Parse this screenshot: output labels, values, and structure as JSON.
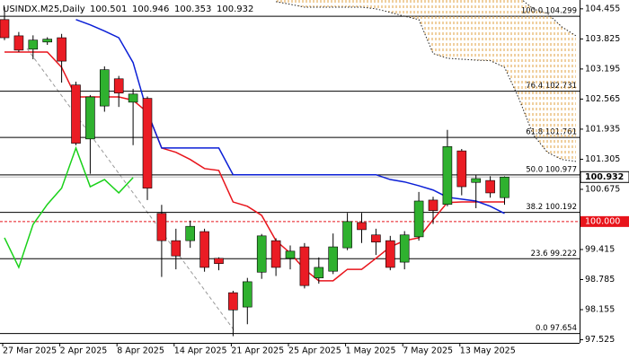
{
  "chart_data": {
    "type": "candlestick",
    "symbol": "USINDX.M25,Daily",
    "header_ohlc": [
      100.501,
      100.946,
      100.353,
      100.932
    ],
    "categories": [
      "27 Mar 2025",
      null,
      null,
      null,
      "2 Apr 2025",
      null,
      null,
      null,
      "8 Apr 2025",
      null,
      null,
      null,
      "14 Apr 2025",
      null,
      null,
      null,
      "21 Apr 2025",
      null,
      null,
      null,
      "25 Apr 2025",
      null,
      null,
      null,
      "1 May 2025",
      null,
      null,
      null,
      "7 May 2025",
      null,
      null,
      null,
      "13 May 2025",
      null,
      null,
      null,
      null,
      null,
      null,
      null,
      null
    ],
    "open": [
      104.23,
      103.89,
      103.61,
      103.76,
      103.85,
      102.86,
      101.73,
      102.42,
      102.99,
      102.5,
      102.58,
      100.17,
      99.6,
      99.6,
      99.79,
      99.23,
      98.51,
      98.21,
      98.94,
      99.6,
      99.23,
      99.47,
      98.82,
      98.96,
      99.45,
      99.98,
      99.72,
      99.6,
      99.15,
      99.68,
      100.45,
      100.36,
      101.48,
      100.82,
      100.86,
      100.501,
      null,
      null,
      null,
      null,
      null
    ],
    "high": [
      104.49,
      103.97,
      103.9,
      103.86,
      103.93,
      102.93,
      102.65,
      103.25,
      103.05,
      102.78,
      102.62,
      100.35,
      99.85,
      100.02,
      99.85,
      99.25,
      98.55,
      98.82,
      99.74,
      99.65,
      99.5,
      99.55,
      99.25,
      99.75,
      100.18,
      100.18,
      99.85,
      99.7,
      99.8,
      100.62,
      100.52,
      101.92,
      101.52,
      100.98,
      100.95,
      100.946,
      null,
      null,
      null,
      null,
      null
    ],
    "low": [
      103.8,
      103.55,
      103.4,
      103.7,
      102.91,
      101.6,
      101.0,
      102.3,
      102.4,
      101.6,
      100.45,
      98.84,
      99.0,
      99.45,
      98.95,
      98.98,
      97.6,
      97.85,
      98.8,
      98.86,
      99.0,
      98.6,
      98.7,
      98.9,
      99.4,
      99.55,
      99.3,
      98.98,
      99.0,
      99.6,
      99.95,
      100.32,
      100.55,
      100.28,
      100.5,
      100.353,
      null,
      null,
      null,
      null,
      null
    ],
    "close": [
      103.85,
      103.59,
      103.8,
      103.82,
      103.36,
      101.64,
      102.61,
      103.18,
      102.69,
      102.67,
      100.7,
      99.6,
      99.28,
      99.9,
      99.04,
      99.12,
      98.15,
      98.74,
      99.7,
      99.04,
      99.38,
      98.66,
      99.04,
      99.47,
      100.0,
      99.83,
      99.57,
      99.04,
      99.72,
      100.43,
      100.23,
      101.57,
      100.73,
      100.9,
      100.6,
      100.932,
      null,
      null,
      null,
      null,
      null
    ],
    "up_color": "#2fb12f",
    "down_color": "#ea1c24",
    "series": [
      {
        "color": "#e8141b",
        "style": "solid",
        "values": [
          103.55,
          103.55,
          103.55,
          103.55,
          103.23,
          102.61,
          102.61,
          102.61,
          102.61,
          102.54,
          102.29,
          101.54,
          101.45,
          101.3,
          101.11,
          101.07,
          100.41,
          100.32,
          100.13,
          99.6,
          99.34,
          99.0,
          98.76,
          98.76,
          99.0,
          99.0,
          99.23,
          99.47,
          99.6,
          99.66,
          100.04,
          100.4,
          100.41,
          100.41,
          100.41,
          100.41,
          null,
          null,
          null,
          null,
          null
        ]
      },
      {
        "color": "#0b1fd6",
        "style": "solid",
        "values": [
          null,
          null,
          null,
          null,
          null,
          104.23,
          104.12,
          103.99,
          103.85,
          103.33,
          102.29,
          101.54,
          101.54,
          101.54,
          101.54,
          101.54,
          100.98,
          100.98,
          100.98,
          100.98,
          100.98,
          100.98,
          100.98,
          100.98,
          100.98,
          100.98,
          100.98,
          100.88,
          100.83,
          100.75,
          100.66,
          100.51,
          100.47,
          100.43,
          100.32,
          100.17,
          null,
          null,
          null,
          null,
          null
        ]
      },
      {
        "color": "#19d119",
        "style": "solid",
        "values": [
          99.66,
          99.04,
          99.94,
          100.36,
          100.7,
          101.54,
          100.73,
          100.88,
          100.6,
          100.92,
          null,
          null,
          null,
          null,
          null,
          null,
          null,
          null,
          null,
          null,
          null,
          null,
          null,
          null,
          null,
          null,
          null,
          null,
          null,
          null,
          null,
          null,
          null,
          null,
          null,
          null,
          null,
          null,
          null,
          null,
          null
        ]
      },
      {
        "color": "#222222",
        "style": "dotted",
        "values": [
          null,
          null,
          null,
          null,
          null,
          null,
          null,
          null,
          null,
          null,
          null,
          null,
          null,
          null,
          null,
          null,
          null,
          null,
          null,
          104.605,
          104.55,
          104.49,
          104.49,
          104.49,
          104.49,
          104.49,
          104.455,
          104.38,
          104.3,
          104.23,
          103.52,
          103.42,
          103.4,
          103.38,
          103.37,
          103.23,
          102.58,
          101.82,
          101.45,
          101.3,
          101.26
        ]
      },
      {
        "color": "#222222",
        "style": "dotted",
        "values": [
          null,
          null,
          null,
          null,
          null,
          null,
          null,
          null,
          null,
          null,
          null,
          null,
          null,
          null,
          null,
          null,
          null,
          null,
          null,
          104.7,
          104.7,
          104.7,
          104.7,
          104.7,
          104.7,
          104.7,
          104.7,
          104.7,
          104.7,
          104.7,
          104.7,
          104.7,
          104.7,
          104.7,
          104.7,
          104.7,
          104.7,
          104.455,
          104.36,
          104.08,
          103.89
        ]
      }
    ],
    "cloud_color": "#e0a040",
    "ylim": [
      97.46,
      104.64
    ],
    "yticks": [
      104.455,
      103.825,
      103.195,
      102.565,
      101.935,
      101.305,
      100.675,
      99.415,
      98.785,
      98.155,
      97.525
    ],
    "fib_levels": [
      {
        "value": 104.299,
        "label": "100.0 104.299"
      },
      {
        "value": 102.731,
        "label": "76.4 102.731"
      },
      {
        "value": 101.761,
        "label": "61.8 101.761"
      },
      {
        "value": 100.977,
        "label": "50.0 100.977"
      },
      {
        "value": 100.192,
        "label": "38.2 100.192"
      },
      {
        "value": 99.222,
        "label": "23.6 99.222"
      },
      {
        "value": 97.654,
        "label": "0.0 97.654"
      }
    ],
    "current_price": 100.932,
    "alert_level": {
      "value": 100,
      "label": "100.000"
    }
  }
}
